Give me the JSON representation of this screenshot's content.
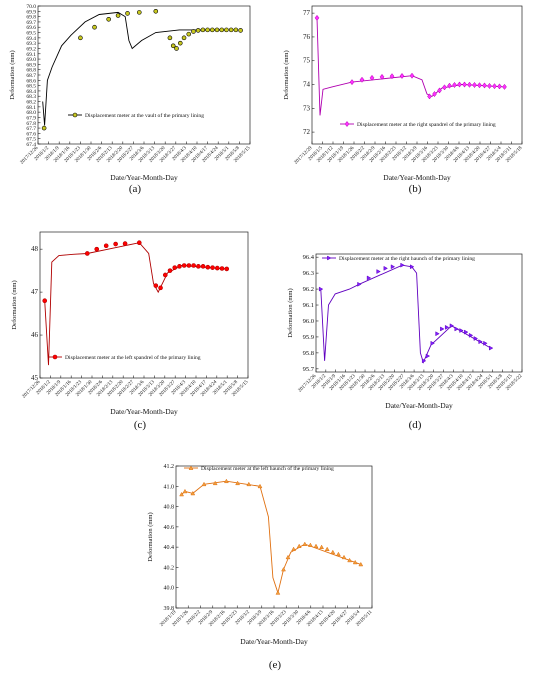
{
  "chart_data": [
    {
      "panel_label": "(a)",
      "type": "line",
      "ylabel": "Deformation (mm)",
      "xlabel": "Date/Year-Month-Day",
      "ylim": [
        67.4,
        70.0
      ],
      "yticks": [
        "67.4",
        "67.5",
        "67.6",
        "67.7",
        "67.8",
        "67.9",
        "68.0",
        "68.1",
        "68.2",
        "68.3",
        "68.4",
        "68.5",
        "68.6",
        "68.7",
        "68.8",
        "68.9",
        "69.0",
        "69.1",
        "69.2",
        "69.3",
        "69.4",
        "69.5",
        "69.6",
        "69.7",
        "69.8",
        "69.9",
        "70.0"
      ],
      "xticks": [
        "2017/12/26",
        "2018/1/2",
        "2018/1/9",
        "2018/1/16",
        "2018/1/23",
        "2018/1/30",
        "2018/2/6",
        "2018/2/13",
        "2018/2/20",
        "2018/2/27",
        "2018/3/6",
        "2018/3/13",
        "2018/3/20",
        "2018/3/27",
        "2018/4/3",
        "2018/4/10",
        "2018/4/17",
        "2018/4/24",
        "2018/5/1",
        "2018/5/8",
        "2018/5/15"
      ],
      "legend": "Displacement meter at the vault of the primary lining",
      "series_color": "#000000",
      "marker_fill": "#c8c820",
      "marker": "circle",
      "curve": [
        [
          1,
          68.2
        ],
        [
          1.4,
          67.75
        ],
        [
          2,
          68.6
        ],
        [
          3,
          68.85
        ],
        [
          5,
          69.25
        ],
        [
          7,
          69.45
        ],
        [
          10,
          69.7
        ],
        [
          13,
          69.84
        ],
        [
          17,
          69.88
        ],
        [
          18.5,
          69.8
        ],
        [
          19.3,
          69.35
        ],
        [
          20,
          69.2
        ],
        [
          22,
          69.35
        ],
        [
          25,
          69.5
        ],
        [
          30,
          69.55
        ],
        [
          40,
          69.55
        ]
      ],
      "points": [
        [
          1.3,
          67.7
        ],
        [
          9,
          69.4
        ],
        [
          12,
          69.6
        ],
        [
          15,
          69.75
        ],
        [
          17,
          69.82
        ],
        [
          19,
          69.86
        ],
        [
          21.5,
          69.88
        ],
        [
          25,
          69.9
        ],
        [
          28,
          69.4
        ],
        [
          28.7,
          69.25
        ],
        [
          29.4,
          69.2
        ],
        [
          30.2,
          69.3
        ],
        [
          31,
          69.4
        ],
        [
          32,
          69.47
        ],
        [
          33,
          69.52
        ],
        [
          34,
          69.54
        ],
        [
          35,
          69.55
        ],
        [
          36,
          69.55
        ],
        [
          37,
          69.55
        ],
        [
          38,
          69.55
        ],
        [
          39,
          69.55
        ],
        [
          40,
          69.55
        ],
        [
          41,
          69.55
        ],
        [
          42,
          69.55
        ],
        [
          43,
          69.54
        ]
      ],
      "xrange": [
        0,
        45
      ]
    },
    {
      "panel_label": "(b)",
      "type": "line",
      "ylabel": "Deformation (mm)",
      "xlabel": "Date/Year-Month-Day",
      "ylim": [
        71.5,
        77.3
      ],
      "yticks": [
        "72",
        "73",
        "74",
        "75",
        "76",
        "77"
      ],
      "xticks": [
        "2017/12/29",
        "2018/1/5",
        "2018/1/12",
        "2018/1/19",
        "2018/1/26",
        "2018/2/2",
        "2018/2/9",
        "2018/2/16",
        "2018/2/23",
        "2018/3/2",
        "2018/3/9",
        "2018/3/16",
        "2018/3/23",
        "2018/3/30",
        "2018/4/6",
        "2018/4/13",
        "2018/4/20",
        "2018/4/27",
        "2018/5/4",
        "2018/5/11",
        "2018/5/18"
      ],
      "legend": "Displacement meter at the right spandrel of the primary lining",
      "series_color": "#b000b0",
      "marker_fill": "#ff30ff",
      "marker": "diamond",
      "points": [
        [
          1,
          76.8
        ],
        [
          8,
          74.1
        ],
        [
          10,
          74.2
        ],
        [
          12,
          74.28
        ],
        [
          14,
          74.32
        ],
        [
          16,
          74.35
        ],
        [
          18,
          74.36
        ],
        [
          20,
          74.37
        ],
        [
          23.5,
          73.5
        ],
        [
          24.5,
          73.6
        ],
        [
          25.5,
          73.75
        ],
        [
          26.5,
          73.88
        ],
        [
          27.5,
          73.95
        ],
        [
          28.5,
          73.98
        ],
        [
          29.5,
          74.0
        ],
        [
          30.5,
          74.0
        ],
        [
          31.5,
          73.99
        ],
        [
          32.5,
          73.98
        ],
        [
          33.5,
          73.97
        ],
        [
          34.5,
          73.96
        ],
        [
          35.5,
          73.94
        ],
        [
          36.5,
          73.93
        ],
        [
          37.5,
          73.92
        ],
        [
          38.5,
          73.9
        ]
      ],
      "curve": [
        [
          1,
          76.8
        ],
        [
          1.6,
          72.7
        ],
        [
          2.2,
          73.8
        ],
        [
          4,
          73.9
        ],
        [
          8,
          74.1
        ],
        [
          20,
          74.37
        ],
        [
          22,
          74.2
        ],
        [
          23,
          73.6
        ],
        [
          24,
          73.5
        ],
        [
          26,
          73.85
        ],
        [
          30,
          74.0
        ],
        [
          38.5,
          73.9
        ]
      ],
      "xrange": [
        0,
        42
      ]
    },
    {
      "panel_label": "(c)",
      "type": "line",
      "ylabel": "Deformation (mm)",
      "xlabel": "Date/Year-Month-Day",
      "ylim": [
        45,
        48.4
      ],
      "yticks": [
        "45",
        "46",
        "47",
        "48"
      ],
      "xticks": [
        "2017/12/26",
        "2018/1/2",
        "2018/1/9",
        "2018/1/16",
        "2018/1/23",
        "2018/1/30",
        "2018/2/6",
        "2018/2/13",
        "2018/2/20",
        "2018/2/27",
        "2018/3/6",
        "2018/3/13",
        "2018/3/20",
        "2018/3/27",
        "2018/4/3",
        "2018/4/10",
        "2018/4/17",
        "2018/4/24",
        "2018/5/1",
        "2018/5/8",
        "2018/5/15"
      ],
      "legend": "Displacement meter at the left spandrel of the primary lining",
      "series_color": "#b00000",
      "marker_fill": "#ff0000",
      "marker": "circle",
      "points": [
        [
          1,
          46.8
        ],
        [
          10,
          47.9
        ],
        [
          12,
          48.0
        ],
        [
          14,
          48.08
        ],
        [
          16,
          48.12
        ],
        [
          18,
          48.13
        ],
        [
          21,
          48.15
        ],
        [
          24.5,
          47.15
        ],
        [
          25.5,
          47.1
        ],
        [
          26.5,
          47.4
        ],
        [
          27.5,
          47.5
        ],
        [
          28.5,
          47.57
        ],
        [
          29.5,
          47.6
        ],
        [
          30.5,
          47.62
        ],
        [
          31.5,
          47.62
        ],
        [
          32.5,
          47.62
        ],
        [
          33.5,
          47.6
        ],
        [
          34.5,
          47.6
        ],
        [
          35.5,
          47.58
        ],
        [
          36.5,
          47.57
        ],
        [
          37.5,
          47.56
        ],
        [
          38.5,
          47.55
        ],
        [
          39.5,
          47.54
        ]
      ],
      "curve": [
        [
          1,
          46.8
        ],
        [
          1.8,
          45.3
        ],
        [
          2.5,
          47.7
        ],
        [
          4,
          47.85
        ],
        [
          7,
          47.88
        ],
        [
          10,
          47.9
        ],
        [
          21,
          48.15
        ],
        [
          23,
          47.9
        ],
        [
          24,
          47.2
        ],
        [
          25,
          47.0
        ],
        [
          27,
          47.45
        ],
        [
          30,
          47.62
        ],
        [
          39.5,
          47.54
        ]
      ],
      "xrange": [
        0,
        44
      ]
    },
    {
      "panel_label": "(d)",
      "type": "line",
      "ylabel": "Deformation (mm)",
      "xlabel": "Date/Year-Month-Day",
      "ylim": [
        95.68,
        96.42
      ],
      "yticks": [
        "95.7",
        "95.8",
        "95.9",
        "96.0",
        "96.1",
        "96.2",
        "96.3",
        "96.4"
      ],
      "xticks": [
        "2017/12/26",
        "2018/1/2",
        "2018/1/9",
        "2018/1/16",
        "2018/1/23",
        "2018/1/30",
        "2018/2/6",
        "2018/2/13",
        "2018/2/20",
        "2018/2/27",
        "2018/3/6",
        "2018/3/13",
        "2018/3/20",
        "2018/3/27",
        "2018/4/3",
        "2018/4/10",
        "2018/4/17",
        "2018/4/24",
        "2018/5/1",
        "2018/5/8",
        "2018/5/15",
        "2018/5/22"
      ],
      "legend": "Displacement meter at the right haunch of the primary lining",
      "series_color": "#6000c0",
      "marker_fill": "#8020ff",
      "marker": "triangle-right",
      "points": [
        [
          1,
          96.2
        ],
        [
          9,
          96.23
        ],
        [
          11,
          96.27
        ],
        [
          13,
          96.31
        ],
        [
          14.5,
          96.33
        ],
        [
          16,
          96.34
        ],
        [
          18,
          96.35
        ],
        [
          20,
          96.34
        ],
        [
          22.5,
          95.75
        ],
        [
          23.3,
          95.78
        ],
        [
          24.3,
          95.86
        ],
        [
          25.3,
          95.92
        ],
        [
          26.3,
          95.95
        ],
        [
          27.3,
          95.96
        ],
        [
          28.3,
          95.97
        ],
        [
          29.3,
          95.95
        ],
        [
          30.3,
          95.94
        ],
        [
          31.3,
          95.93
        ],
        [
          32.3,
          95.91
        ],
        [
          33.3,
          95.89
        ],
        [
          34.3,
          95.87
        ],
        [
          35.3,
          95.86
        ],
        [
          36.5,
          95.83
        ]
      ],
      "curve": [
        [
          1,
          96.2
        ],
        [
          1.8,
          95.75
        ],
        [
          2.6,
          96.1
        ],
        [
          4,
          96.17
        ],
        [
          7,
          96.2
        ],
        [
          9,
          96.23
        ],
        [
          18,
          96.35
        ],
        [
          20,
          96.34
        ],
        [
          21,
          96.3
        ],
        [
          21.8,
          95.8
        ],
        [
          22.4,
          95.74
        ],
        [
          24,
          95.85
        ],
        [
          28.3,
          95.97
        ],
        [
          36.5,
          95.83
        ]
      ],
      "xrange": [
        0,
        43
      ]
    },
    {
      "panel_label": "(e)",
      "type": "line",
      "ylabel": "Deformation (mm)",
      "xlabel": "Date/Year-Month-Day",
      "ylim": [
        39.8,
        41.2
      ],
      "yticks": [
        "39.8",
        "40.0",
        "40.2",
        "40.4",
        "40.6",
        "40.8",
        "41.0",
        "41.2"
      ],
      "xticks": [
        "2018/1/19",
        "2018/1/26",
        "2018/2/2",
        "2018/2/9",
        "2018/2/16",
        "2018/2/23",
        "2018/3/2",
        "2018/3/9",
        "2018/3/16",
        "2018/3/23",
        "2018/3/30",
        "2018/4/6",
        "2018/4/13",
        "2018/4/20",
        "2018/4/27",
        "2018/5/4",
        "2018/5/11"
      ],
      "legend": "Displacement meter at the left haunch of the primary lining",
      "series_color": "#e07010",
      "marker_fill": "#f0a040",
      "marker": "triangle",
      "points": [
        [
          1,
          40.92
        ],
        [
          1.6,
          40.95
        ],
        [
          3,
          40.93
        ],
        [
          5,
          41.02
        ],
        [
          7,
          41.03
        ],
        [
          9,
          41.05
        ],
        [
          11,
          41.03
        ],
        [
          13,
          41.02
        ],
        [
          15,
          41.0
        ],
        [
          18.2,
          39.95
        ],
        [
          19.2,
          40.18
        ],
        [
          20,
          40.3
        ],
        [
          21,
          40.38
        ],
        [
          22,
          40.41
        ],
        [
          23,
          40.43
        ],
        [
          24,
          40.42
        ],
        [
          25,
          40.41
        ],
        [
          26,
          40.4
        ],
        [
          27,
          40.38
        ],
        [
          28,
          40.35
        ],
        [
          29,
          40.33
        ],
        [
          30,
          40.3
        ],
        [
          31,
          40.27
        ],
        [
          32,
          40.25
        ],
        [
          33,
          40.23
        ]
      ],
      "curve": [
        [
          1,
          40.92
        ],
        [
          1.6,
          40.95
        ],
        [
          3,
          40.93
        ],
        [
          5,
          41.02
        ],
        [
          9,
          41.05
        ],
        [
          15,
          41.0
        ],
        [
          16.5,
          40.7
        ],
        [
          17.3,
          40.1
        ],
        [
          18.2,
          39.95
        ],
        [
          19.2,
          40.18
        ],
        [
          20.5,
          40.35
        ],
        [
          23,
          40.43
        ],
        [
          33,
          40.23
        ]
      ],
      "xrange": [
        0,
        35
      ]
    }
  ]
}
